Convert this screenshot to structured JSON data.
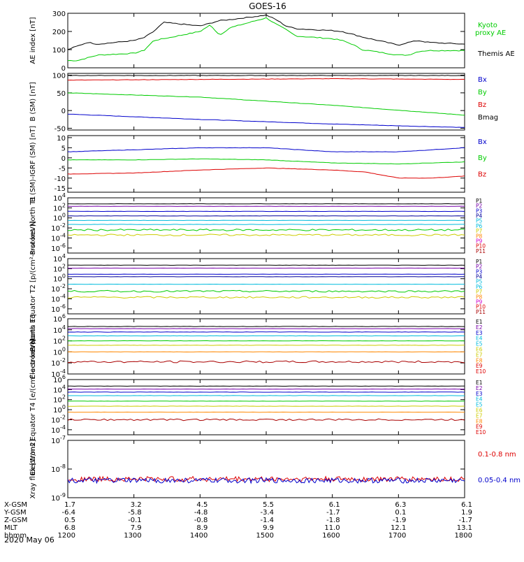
{
  "title": "GOES-16",
  "date": "2020 May 06",
  "colors": {
    "black": "#000000",
    "blue": "#0000cc",
    "green": "#00cc00",
    "red": "#dd0000",
    "purple": "#7700aa",
    "cyan": "#00bbdd",
    "yellow": "#cccc00",
    "orange": "#ff8800",
    "magenta": "#cc00cc",
    "darkred": "#aa0000"
  },
  "orbit_table": {
    "row_labels": [
      "X-GSM",
      "Y-GSM",
      "Z-GSM",
      "MLT",
      "hhmm"
    ],
    "columns": [
      [
        "1.7",
        "-6.4",
        "0.5",
        "6.8",
        "1200"
      ],
      [
        "3.2",
        "-5.8",
        "-0.1",
        "7.9",
        "1300"
      ],
      [
        "4.5",
        "-4.8",
        "-0.8",
        "8.9",
        "1400"
      ],
      [
        "5.5",
        "-3.4",
        "-1.4",
        "9.9",
        "1500"
      ],
      [
        "6.1",
        "-1.7",
        "-1.8",
        "11.0",
        "1600"
      ],
      [
        "6.3",
        "0.1",
        "-1.9",
        "12.1",
        "1700"
      ],
      [
        "6.1",
        "1.9",
        "-1.7",
        "13.1",
        "1800"
      ]
    ]
  },
  "chart_data": [
    {
      "id": "ae",
      "type": "line",
      "ylabel": "AE index [nT]",
      "ylim": [
        0,
        300
      ],
      "yticks": [
        "0",
        "100",
        "200",
        "300"
      ],
      "xlim": [
        1200,
        1800
      ],
      "series": [
        {
          "name": "Kyoto proxy AE",
          "color": "green",
          "x": [
            1200,
            1215,
            1230,
            1245,
            1300,
            1315,
            1330,
            1345,
            1400,
            1415,
            1430,
            1445,
            1500,
            1515,
            1530,
            1545,
            1600,
            1615,
            1630,
            1645,
            1700,
            1715,
            1730,
            1745,
            1800
          ],
          "y": [
            40,
            40,
            55,
            70,
            80,
            95,
            150,
            160,
            200,
            235,
            180,
            220,
            275,
            240,
            210,
            175,
            160,
            150,
            130,
            100,
            70,
            70,
            90,
            95,
            95
          ]
        },
        {
          "name": "Themis AE",
          "color": "black",
          "x": [
            1200,
            1215,
            1230,
            1245,
            1300,
            1315,
            1330,
            1345,
            1400,
            1415,
            1430,
            1445,
            1500,
            1515,
            1530,
            1545,
            1600,
            1615,
            1630,
            1645,
            1700,
            1715,
            1730,
            1745,
            1800
          ],
          "y": [
            100,
            120,
            140,
            130,
            150,
            165,
            200,
            250,
            230,
            245,
            260,
            265,
            290,
            265,
            230,
            215,
            205,
            200,
            185,
            170,
            125,
            140,
            150,
            140,
            130
          ]
        }
      ]
    },
    {
      "id": "bsm",
      "type": "line",
      "ylabel": "B (SM) [nT]",
      "ylim": [
        -55,
        105
      ],
      "yticks": [
        "-50",
        "0",
        "50",
        "100"
      ],
      "xlim": [
        1200,
        1800
      ],
      "series": [
        {
          "name": "Bx",
          "color": "blue",
          "x": [
            1200,
            1400,
            1600,
            1800
          ],
          "y": [
            -10,
            -25,
            -38,
            -48
          ]
        },
        {
          "name": "By",
          "color": "green",
          "x": [
            1200,
            1400,
            1600,
            1800
          ],
          "y": [
            50,
            38,
            15,
            -13
          ]
        },
        {
          "name": "Bz",
          "color": "red",
          "x": [
            1200,
            1400,
            1600,
            1800
          ],
          "y": [
            86,
            88,
            90,
            88
          ]
        },
        {
          "name": "Bmag",
          "color": "black",
          "x": [
            1200,
            1400,
            1600,
            1800
          ],
          "y": [
            99,
            99,
            99,
            99
          ]
        }
      ]
    },
    {
      "id": "bigrf",
      "type": "line",
      "ylabel": "B (SM)-IGRF (SM) [nT]",
      "ylim": [
        -17,
        11
      ],
      "yticks": [
        "-15",
        "-10",
        "-5",
        "0",
        "5",
        "10"
      ],
      "xlim": [
        1200,
        1800
      ],
      "series": [
        {
          "name": "Bx",
          "color": "blue",
          "x": [
            1200,
            1300,
            1400,
            1500,
            1600,
            1700,
            1800
          ],
          "y": [
            3,
            4,
            5,
            5,
            3,
            3,
            5
          ]
        },
        {
          "name": "By",
          "color": "green",
          "x": [
            1200,
            1300,
            1400,
            1500,
            1600,
            1700,
            1800
          ],
          "y": [
            -1,
            -1,
            -0.5,
            -1,
            -2.5,
            -3,
            -2
          ]
        },
        {
          "name": "Bz",
          "color": "red",
          "x": [
            1200,
            1300,
            1400,
            1500,
            1600,
            1650,
            1700,
            1750,
            1800
          ],
          "y": [
            -8,
            -7.5,
            -6,
            -5,
            -6,
            -7,
            -10,
            -10,
            -9
          ]
        }
      ]
    },
    {
      "id": "p_north",
      "type": "line",
      "ylabel": "Protons North T1",
      "yscale": "log",
      "ylim": [
        -7,
        4
      ],
      "yticks": [
        "10^4",
        "10^2",
        "10^0",
        "10^-2",
        "10^-4",
        "10^-6"
      ],
      "xlim": [
        1200,
        1800
      ],
      "series": [
        {
          "name": "P1",
          "color": "black",
          "level": 2.8
        },
        {
          "name": "P2",
          "color": "purple",
          "level": 2.3
        },
        {
          "name": "P3",
          "color": "blue",
          "level": 1.3
        },
        {
          "name": "P4",
          "color": "darkblue",
          "level": 0.4
        },
        {
          "name": "P5",
          "color": "cyan",
          "level": -0.5
        },
        {
          "name": "P6",
          "color": "cyan",
          "level": -1.3
        },
        {
          "name": "P7",
          "color": "green",
          "level": -2.4
        },
        {
          "name": "P8",
          "color": "yellow",
          "level": -3.4
        }
      ],
      "labels": [
        "P1",
        "P2",
        "P3",
        "P4",
        "P5",
        "P6",
        "P7",
        "P8",
        "P9",
        "P10",
        "P11"
      ]
    },
    {
      "id": "p_equator",
      "type": "line",
      "ylabel": "Protons Equator T2 [p/(cm²-s-sr-keV)]",
      "yscale": "log",
      "ylim": [
        -7,
        4
      ],
      "yticks": [
        "10^4",
        "10^2",
        "10^0",
        "10^-2",
        "10^-4",
        "10^-6"
      ],
      "xlim": [
        1200,
        1800
      ],
      "series": [
        {
          "name": "P1",
          "color": "black",
          "level": 2.7
        },
        {
          "name": "P2",
          "color": "purple",
          "level": 2.1
        },
        {
          "name": "P3",
          "color": "blue",
          "level": 0.9
        },
        {
          "name": "P4",
          "color": "darkblue",
          "level": 0.4
        },
        {
          "name": "P5",
          "color": "cyan",
          "level": -1.1
        },
        {
          "name": "P6",
          "color": "green",
          "level": -2.5
        },
        {
          "name": "P7",
          "color": "yellow",
          "level": -3.7
        }
      ],
      "labels": [
        "P1",
        "P2",
        "P3",
        "P4",
        "P5",
        "P6",
        "P7",
        "P8",
        "P9",
        "P10",
        "P11"
      ]
    },
    {
      "id": "e_north",
      "type": "line",
      "ylabel": "Electrons North T3",
      "yscale": "log",
      "ylim": [
        -4,
        6
      ],
      "yticks": [
        "10^6",
        "10^4",
        "10^2",
        "10^0",
        "10^-2",
        "10^-4"
      ],
      "xlim": [
        1200,
        1800
      ],
      "series": [
        {
          "name": "E1",
          "color": "black",
          "level": 4.6
        },
        {
          "name": "E2",
          "color": "purple",
          "level": 4.2
        },
        {
          "name": "E3",
          "color": "blue",
          "level": 3.6
        },
        {
          "name": "E4",
          "color": "cyan",
          "level": 2.9
        },
        {
          "name": "E5",
          "color": "green",
          "level": 2.0
        },
        {
          "name": "E6",
          "color": "yellow",
          "level": 1.2
        },
        {
          "name": "E7",
          "color": "orange",
          "level": 0.0
        },
        {
          "name": "E8",
          "color": "darkred",
          "level": -1.8
        }
      ],
      "labels": [
        "E1",
        "E2",
        "E3",
        "E4",
        "E5",
        "E6",
        "E7",
        "E8",
        "E9",
        "E10"
      ]
    },
    {
      "id": "e_equator",
      "type": "line",
      "ylabel": "Electrons Equator T4 [e/(cm²-s-sr-keV)]",
      "yscale": "log",
      "ylim": [
        -5,
        6
      ],
      "yticks": [
        "10^6",
        "10^4",
        "10^2",
        "10^0",
        "10^-2",
        "10^-4"
      ],
      "xlim": [
        1200,
        1800
      ],
      "series": [
        {
          "name": "E1",
          "color": "black",
          "level": 4.7
        },
        {
          "name": "E2",
          "color": "purple",
          "level": 4.1
        },
        {
          "name": "E3",
          "color": "blue",
          "level": 3.5
        },
        {
          "name": "E4",
          "color": "cyan",
          "level": 2.8
        },
        {
          "name": "E5",
          "color": "green",
          "level": 1.7
        },
        {
          "name": "E6",
          "color": "yellow",
          "level": 0.7
        },
        {
          "name": "E7",
          "color": "orange",
          "level": -0.5
        },
        {
          "name": "E8",
          "color": "darkred",
          "level": -2.0
        }
      ],
      "labels": [
        "E1",
        "E2",
        "E3",
        "E4",
        "E5",
        "E6",
        "E7",
        "E8",
        "E9",
        "E10"
      ]
    },
    {
      "id": "xray",
      "type": "line",
      "ylabel": "Xray flux [W/m2]",
      "yscale": "log",
      "ylim": [
        -9,
        -7
      ],
      "yticks": [
        "10^-7",
        "10^-8",
        "10^-9"
      ],
      "xlim": [
        1200,
        1800
      ],
      "series": [
        {
          "name": "0.1-0.8 nm",
          "color": "red",
          "level": -8.35
        },
        {
          "name": "0.05-0.4 nm",
          "color": "blue",
          "level": -8.4
        }
      ]
    }
  ]
}
